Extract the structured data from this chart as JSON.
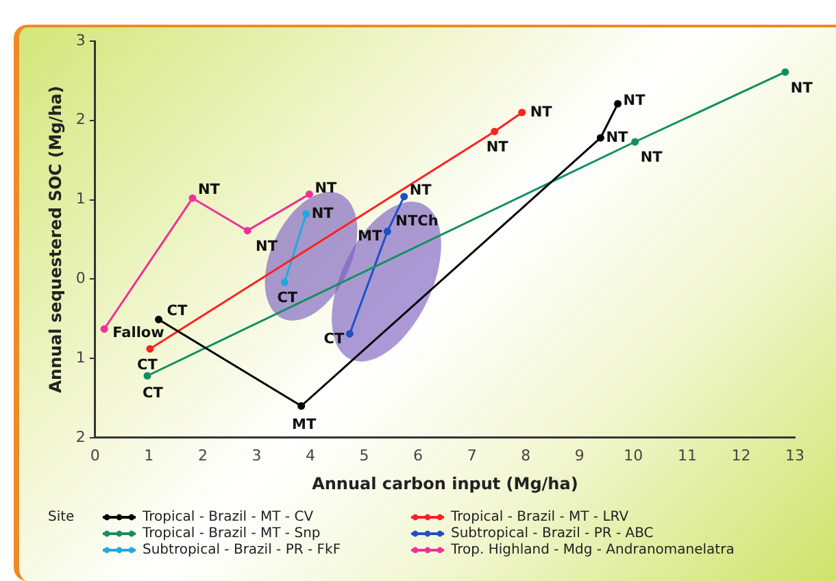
{
  "chart_data": {
    "type": "line",
    "xlabel": "Annual carbon input (Mg/ha)",
    "ylabel": "Annual sequestered SOC (Mg/ha)",
    "legend_title": "Site",
    "legend": "bottom",
    "marker": "circle",
    "line_style": "solid",
    "grid": false,
    "xlim": [
      0,
      13
    ],
    "xticks": [
      0,
      1,
      2,
      3,
      4,
      5,
      6,
      7,
      8,
      9,
      10,
      11,
      12,
      13
    ],
    "ylim": [
      -2,
      3
    ],
    "yticks": [
      {
        "value": -2,
        "label": "2"
      },
      {
        "value": -1,
        "label": "1"
      },
      0,
      1,
      2,
      3
    ],
    "series": [
      {
        "name": "Tropical - Brazil - MT - CV",
        "color": "#000000",
        "x": [
          1.18,
          3.83,
          9.39,
          9.71
        ],
        "values": [
          -0.51,
          -1.6,
          1.78,
          2.21
        ]
      },
      {
        "name": "Tropical - Brazil - MT - LRV",
        "color": "#ff2020",
        "x": [
          1.02,
          7.42,
          7.93
        ],
        "values": [
          -0.88,
          1.86,
          2.1
        ]
      },
      {
        "name": "Tropical - Brazil - MT - Snp",
        "color": "#109060",
        "x": [
          0.97,
          10.03,
          12.82
        ],
        "values": [
          -1.22,
          1.73,
          2.61
        ]
      },
      {
        "name": "Subtropical - Brazil - PR - ABC",
        "color": "#1e50c8",
        "x": [
          4.73,
          5.43,
          5.74
        ],
        "values": [
          -0.69,
          0.6,
          1.04
        ]
      },
      {
        "name": "Subtropical - Brazil - PR - FkF",
        "color": "#20a8e0",
        "x": [
          3.52,
          3.92
        ],
        "values": [
          -0.04,
          0.82
        ]
      },
      {
        "name": "Trop. Highland - Mdg - Andranomanelatra",
        "color": "#f0309a",
        "x": [
          0.17,
          1.81,
          2.83,
          3.98
        ],
        "values": [
          -0.63,
          1.02,
          0.61,
          1.07
        ]
      }
    ],
    "annotations": [
      {
        "text": "Fallow",
        "x": 0.17,
        "y": -0.63
      },
      {
        "text": "NT",
        "x": 1.81,
        "y": 1.02
      },
      {
        "text": "NT",
        "x": 2.83,
        "y": 0.61
      },
      {
        "text": "NT",
        "x": 3.98,
        "y": 1.07
      },
      {
        "text": "CT",
        "x": 3.52,
        "y": -0.04
      },
      {
        "text": "NT",
        "x": 3.92,
        "y": 0.82
      },
      {
        "text": "CT",
        "x": 4.73,
        "y": -0.69
      },
      {
        "text": "MT",
        "x": 5.43,
        "y": 0.6
      },
      {
        "text": "NTCh",
        "x": 5.43,
        "y": 0.6
      },
      {
        "text": "NT",
        "x": 5.74,
        "y": 1.04
      },
      {
        "text": "CT",
        "x": 1.02,
        "y": -0.88
      },
      {
        "text": "NT",
        "x": 7.42,
        "y": 1.86
      },
      {
        "text": "NT",
        "x": 7.93,
        "y": 2.1
      },
      {
        "text": "CT",
        "x": 0.97,
        "y": -1.22
      },
      {
        "text": "NT",
        "x": 10.03,
        "y": 1.73
      },
      {
        "text": "NT",
        "x": 12.82,
        "y": 2.61
      },
      {
        "text": "CT",
        "x": 1.18,
        "y": -0.51
      },
      {
        "text": "MT",
        "x": 3.83,
        "y": -1.6
      },
      {
        "text": "NT",
        "x": 9.39,
        "y": 1.78
      },
      {
        "text": "NT",
        "x": 9.71,
        "y": 2.21
      }
    ]
  }
}
